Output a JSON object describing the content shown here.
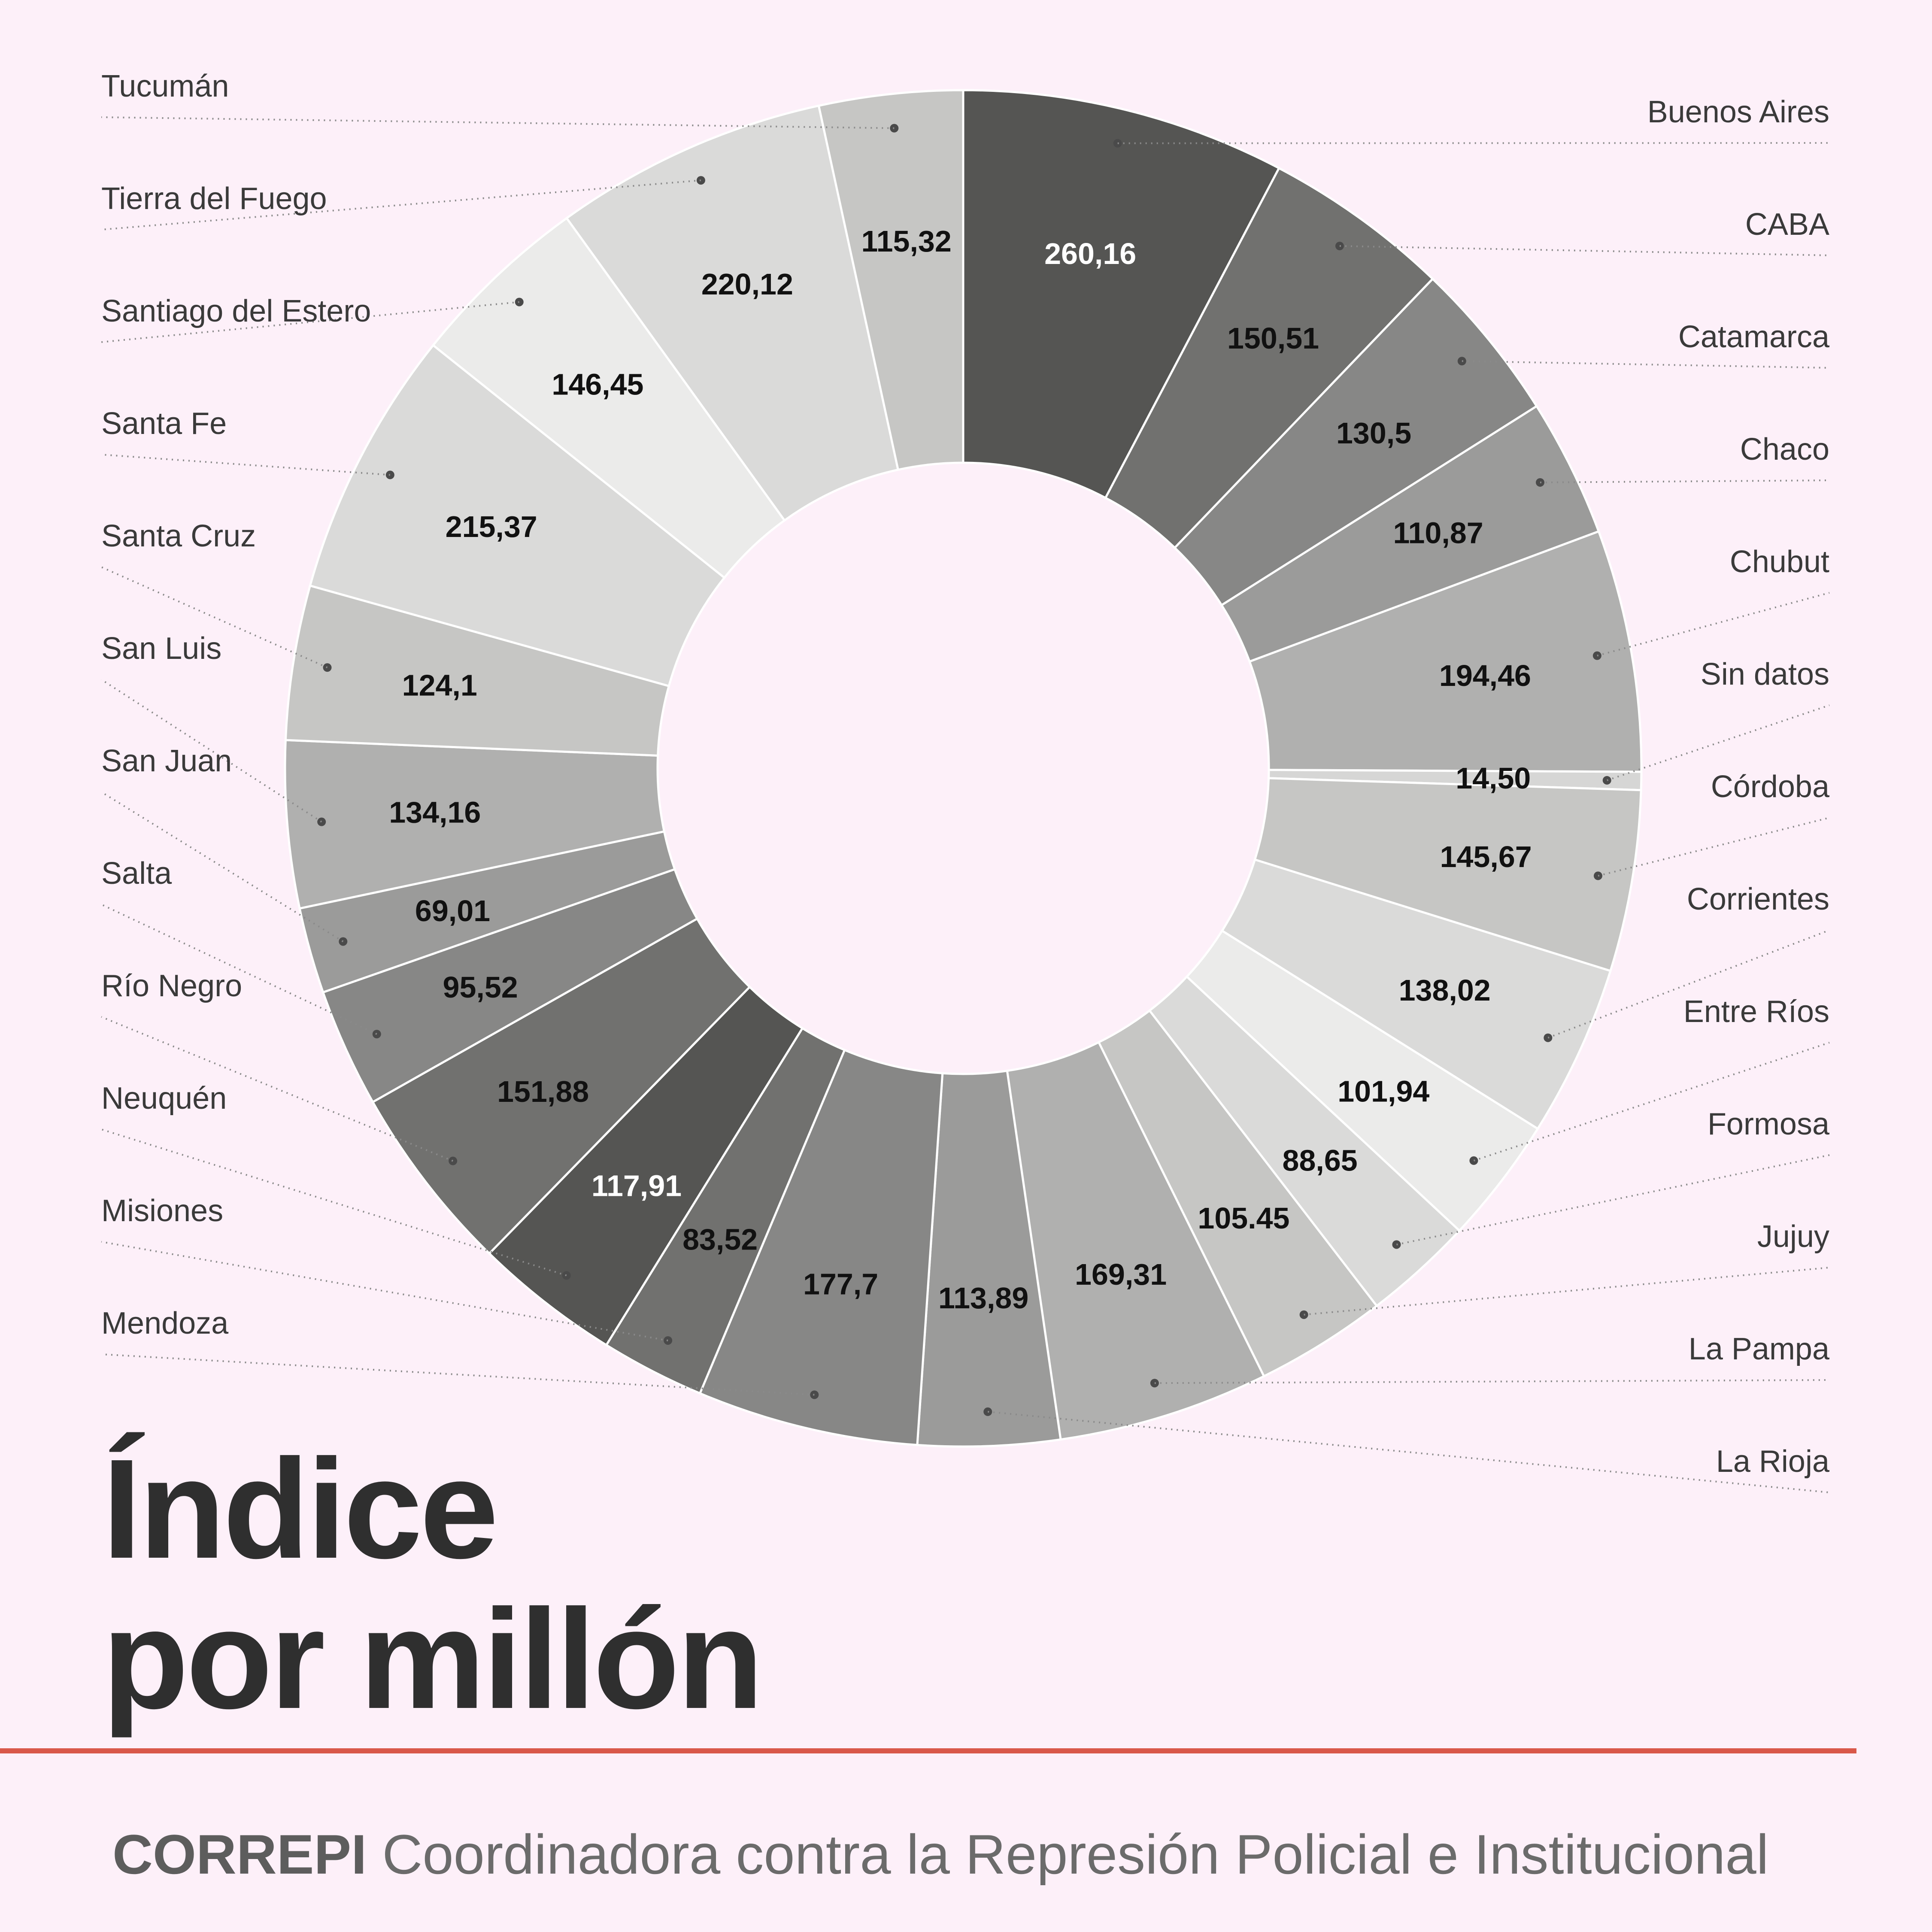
{
  "title": {
    "line1": "Índice",
    "line2": "por millón"
  },
  "footer": {
    "org": "CORREPI",
    "text": "Coordinadora contra la Represión Policial e Institucional"
  },
  "colors": {
    "background": "#fdf0f9",
    "accent_line": "#d9584a"
  },
  "chart_data": {
    "type": "pie",
    "style": "donut",
    "title": "Índice por millón",
    "slices": [
      {
        "label": "Buenos Aires",
        "value": 260.16,
        "display": "260,16",
        "color": "#555553"
      },
      {
        "label": "CABA",
        "value": 150.51,
        "display": "150,51",
        "color": "#71716f"
      },
      {
        "label": "Catamarca",
        "value": 130.5,
        "display": "130,5",
        "color": "#878786"
      },
      {
        "label": "Chaco",
        "value": 110.87,
        "display": "110,87",
        "color": "#9b9b9a"
      },
      {
        "label": "Chubut",
        "value": 194.46,
        "display": "194,46",
        "color": "#b0b0af"
      },
      {
        "label": "Sin datos",
        "value": 14.5,
        "display": "14,50",
        "color": "#d6d6d5"
      },
      {
        "label": "Córdoba",
        "value": 145.67,
        "display": "145,67",
        "color": "#c6c6c4"
      },
      {
        "label": "Corrientes",
        "value": 138.02,
        "display": "138,02",
        "color": "#dadad9"
      },
      {
        "label": "Entre Ríos",
        "value": 101.94,
        "display": "101,94",
        "color": "#ebebea"
      },
      {
        "label": "Formosa",
        "value": 88.65,
        "display": "88,65",
        "color": "#dadad9"
      },
      {
        "label": "Jujuy",
        "value": 105.45,
        "display": "105.45",
        "color": "#c6c6c4"
      },
      {
        "label": "La Pampa",
        "value": 169.31,
        "display": "169,31",
        "color": "#b0b0af"
      },
      {
        "label": "La Rioja",
        "value": 113.89,
        "display": "113,89",
        "color": "#9b9b9a"
      },
      {
        "label": "Mendoza",
        "value": 177.7,
        "display": "177,7",
        "color": "#878786"
      },
      {
        "label": "Misiones",
        "value": 83.52,
        "display": "83,52",
        "color": "#71716f"
      },
      {
        "label": "Neuquén",
        "value": 117.91,
        "display": "117,91",
        "color": "#555553"
      },
      {
        "label": "Río Negro",
        "value": 151.88,
        "display": "151,88",
        "color": "#71716f"
      },
      {
        "label": "Salta",
        "value": 95.52,
        "display": "95,52",
        "color": "#878786"
      },
      {
        "label": "San Juan",
        "value": 69.01,
        "display": "69,01",
        "color": "#9b9b9a"
      },
      {
        "label": "San Luis",
        "value": 134.16,
        "display": "134,16",
        "color": "#b0b0af"
      },
      {
        "label": "Santa Cruz",
        "value": 124.1,
        "display": "124,1",
        "color": "#c6c6c4"
      },
      {
        "label": "Santa Fe",
        "value": 215.37,
        "display": "215,37",
        "color": "#dadad9"
      },
      {
        "label": "Santiago del  Estero",
        "value": 146.45,
        "display": "146,45",
        "color": "#ebebea"
      },
      {
        "label": "Tierra del Fuego",
        "value": 220.12,
        "display": "220,12",
        "color": "#dadad9"
      },
      {
        "label": "Tucumán",
        "value": 115.32,
        "display": "115,32",
        "color": "#c6c6c4"
      }
    ]
  }
}
